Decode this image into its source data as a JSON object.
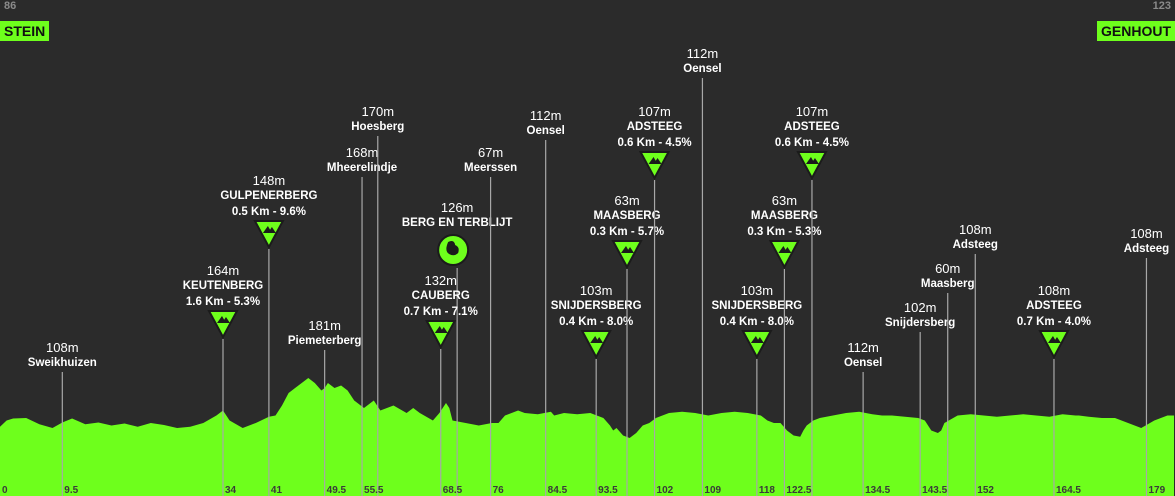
{
  "header": {
    "start": {
      "elevation": "86",
      "name": "STEIN"
    },
    "finish": {
      "elevation": "123",
      "name": "GENHOUT"
    }
  },
  "colors": {
    "background": "#2b2b2b",
    "profile": "#6eff1c",
    "guide": "#a8a8a8",
    "climb_marker_border": "#1b1b1b",
    "label": "#ffffff"
  },
  "chart_data": {
    "type": "area",
    "title": "",
    "xlabel": "",
    "ylabel": "",
    "xlim": [
      0,
      179
    ],
    "x_ticks": [
      "0",
      "9.5",
      "34",
      "41",
      "49.5",
      "55.5",
      "68.5",
      "76",
      "84.5",
      "93.5",
      "102",
      "109",
      "118",
      "122.5",
      "134.5",
      "143.5",
      "152",
      "164.5",
      "179"
    ],
    "profile_shape": [
      [
        0,
        0.45
      ],
      [
        1,
        0.7
      ],
      [
        2,
        0.78
      ],
      [
        4,
        0.8
      ],
      [
        6,
        0.55
      ],
      [
        8,
        0.4
      ],
      [
        9.5,
        0.62
      ],
      [
        11,
        0.78
      ],
      [
        13,
        0.55
      ],
      [
        15,
        0.62
      ],
      [
        17,
        0.5
      ],
      [
        19,
        0.58
      ],
      [
        21,
        0.45
      ],
      [
        23,
        0.6
      ],
      [
        25,
        0.52
      ],
      [
        27,
        0.4
      ],
      [
        29,
        0.45
      ],
      [
        31,
        0.6
      ],
      [
        33,
        0.9
      ],
      [
        34,
        1.1
      ],
      [
        35,
        0.7
      ],
      [
        37,
        0.4
      ],
      [
        39,
        0.6
      ],
      [
        41,
        0.85
      ],
      [
        42,
        0.9
      ],
      [
        43,
        1.3
      ],
      [
        44,
        1.8
      ],
      [
        45,
        2.0
      ],
      [
        46,
        2.2
      ],
      [
        47,
        2.4
      ],
      [
        48,
        2.2
      ],
      [
        49,
        1.9
      ],
      [
        49.5,
        2.0
      ],
      [
        50,
        2.2
      ],
      [
        51,
        2.0
      ],
      [
        52,
        2.1
      ],
      [
        53,
        1.9
      ],
      [
        54,
        1.5
      ],
      [
        55.5,
        1.2
      ],
      [
        57,
        1.5
      ],
      [
        58,
        1.1
      ],
      [
        60,
        1.3
      ],
      [
        62,
        1.0
      ],
      [
        63,
        1.2
      ],
      [
        64,
        1.0
      ],
      [
        66,
        0.7
      ],
      [
        67,
        1.0
      ],
      [
        68,
        1.4
      ],
      [
        68.5,
        1.2
      ],
      [
        69,
        0.7
      ],
      [
        71,
        0.6
      ],
      [
        73,
        0.5
      ],
      [
        75,
        0.6
      ],
      [
        76,
        0.6
      ],
      [
        77,
        0.9
      ],
      [
        79,
        1.1
      ],
      [
        80,
        1.0
      ],
      [
        82,
        0.95
      ],
      [
        84,
        1.05
      ],
      [
        84.5,
        0.9
      ],
      [
        86,
        1.0
      ],
      [
        88,
        0.95
      ],
      [
        90,
        1.0
      ],
      [
        91,
        0.9
      ],
      [
        92,
        0.8
      ],
      [
        93,
        0.5
      ],
      [
        93.5,
        0.3
      ],
      [
        94,
        0.4
      ],
      [
        95,
        0.1
      ],
      [
        96,
        0.0
      ],
      [
        97,
        0.2
      ],
      [
        98,
        0.5
      ],
      [
        99,
        0.6
      ],
      [
        100,
        0.8
      ],
      [
        101,
        0.9
      ],
      [
        102,
        1.0
      ],
      [
        104,
        1.05
      ],
      [
        106,
        1.0
      ],
      [
        108,
        0.9
      ],
      [
        109,
        0.95
      ],
      [
        110,
        1.0
      ],
      [
        112,
        1.05
      ],
      [
        114,
        1.0
      ],
      [
        116,
        0.9
      ],
      [
        117,
        0.7
      ],
      [
        118,
        0.6
      ],
      [
        119,
        0.6
      ],
      [
        120,
        0.3
      ],
      [
        121,
        0.1
      ],
      [
        122,
        0.05
      ],
      [
        122.5,
        0.3
      ],
      [
        123,
        0.5
      ],
      [
        124,
        0.7
      ],
      [
        125,
        0.8
      ],
      [
        127,
        0.9
      ],
      [
        129,
        1.0
      ],
      [
        131,
        1.05
      ],
      [
        133,
        0.95
      ],
      [
        134.5,
        0.9
      ],
      [
        136,
        0.9
      ],
      [
        138,
        0.85
      ],
      [
        140,
        0.8
      ],
      [
        141,
        0.7
      ],
      [
        142,
        0.3
      ],
      [
        143,
        0.2
      ],
      [
        143.5,
        0.3
      ],
      [
        144,
        0.6
      ],
      [
        146,
        0.9
      ],
      [
        148,
        0.95
      ],
      [
        150,
        0.9
      ],
      [
        152,
        0.85
      ],
      [
        154,
        0.9
      ],
      [
        156,
        0.95
      ],
      [
        158,
        0.9
      ],
      [
        160,
        0.85
      ],
      [
        162,
        0.95
      ],
      [
        164,
        0.9
      ],
      [
        164.5,
        0.9
      ],
      [
        166,
        0.85
      ],
      [
        168,
        0.8
      ],
      [
        170,
        0.8
      ],
      [
        172,
        0.6
      ],
      [
        174,
        0.4
      ],
      [
        176,
        0.7
      ],
      [
        178,
        0.9
      ],
      [
        179,
        0.9
      ]
    ],
    "points": [
      {
        "km": 9.5,
        "alt": "108m",
        "name": "Sweikhuizen",
        "climb": false
      },
      {
        "km": 34,
        "alt": "164m",
        "name": "KEUTENBERG",
        "info": "1.6 Km - 5.3%",
        "climb": true
      },
      {
        "km": 41,
        "alt": "148m",
        "name": "GULPENERBERG",
        "info": "0.5 Km - 9.6%",
        "climb": true
      },
      {
        "km": 49.5,
        "alt": "181m",
        "name": "Piemeterberg",
        "climb": false
      },
      {
        "km": 55.5,
        "alt": "168m",
        "name": "Mheerelindje",
        "climb": false,
        "line_km": 55.2
      },
      {
        "km": 55.5,
        "alt": "170m",
        "name": "Hoesberg",
        "climb": false,
        "line_km": 57.6
      },
      {
        "km": 68.5,
        "alt": "126m",
        "name": "BERG EN TERBLIJT",
        "climb": false,
        "sprint": true,
        "line_km": 69.7
      },
      {
        "km": 68.5,
        "alt": "132m",
        "name": "CAUBERG",
        "info": "0.7 Km - 7.1%",
        "climb": true,
        "line_km": 67.2
      },
      {
        "km": 76,
        "alt": "67m",
        "name": "Meerssen",
        "climb": false,
        "line_km": 74.8
      },
      {
        "km": 84.5,
        "alt": "112m",
        "name": "Oensel",
        "climb": false,
        "line_km": 83.2
      },
      {
        "km": 93.5,
        "alt": "103m",
        "name": "SNIJDERSBERG",
        "info": "0.4 Km - 8.0%",
        "climb": true,
        "line_km": 90.9
      },
      {
        "km": 93.5,
        "alt": "63m",
        "name": "MAASBERG",
        "info": "0.3 Km - 5.7%",
        "climb": true,
        "line_km": 95.6
      },
      {
        "km": 102,
        "alt": "107m",
        "name": "ADSTEEG",
        "info": "0.6 Km - 4.5%",
        "climb": true,
        "line_km": 99.8
      },
      {
        "km": 109,
        "alt": "112m",
        "name": "Oensel",
        "climb": false,
        "line_km": 107.1
      },
      {
        "km": 118,
        "alt": "103m",
        "name": "SNIJDERSBERG",
        "info": "0.4 Km - 8.0%",
        "climb": true,
        "line_km": 115.4
      },
      {
        "km": 122.5,
        "alt": "63m",
        "name": "MAASBERG",
        "info": "0.3 Km - 5.3%",
        "climb": true,
        "line_km": 119.6
      },
      {
        "km": 122.5,
        "alt": "107m",
        "name": "ADSTEEG",
        "info": "0.6 Km - 4.5%",
        "climb": true,
        "line_km": 123.8
      },
      {
        "km": 134.5,
        "alt": "112m",
        "name": "Oensel",
        "climb": false,
        "line_km": 131.6
      },
      {
        "km": 143.5,
        "alt": "102m",
        "name": "Snijdersberg",
        "climb": false,
        "line_km": 140.3
      },
      {
        "km": 143.5,
        "alt": "60m",
        "name": "Maasberg",
        "climb": false,
        "line_km": 144.5
      },
      {
        "km": 152,
        "alt": "108m",
        "name": "Adsteeg",
        "climb": false,
        "line_km": 148.7
      },
      {
        "km": 164.5,
        "alt": "108m",
        "name": "ADSTEEG",
        "info": "0.7 Km - 4.0%",
        "climb": true,
        "line_km": 160.7
      },
      {
        "km": 179,
        "alt": "108m",
        "name": "Adsteeg",
        "climb": false,
        "line_km": 174.8
      }
    ]
  }
}
